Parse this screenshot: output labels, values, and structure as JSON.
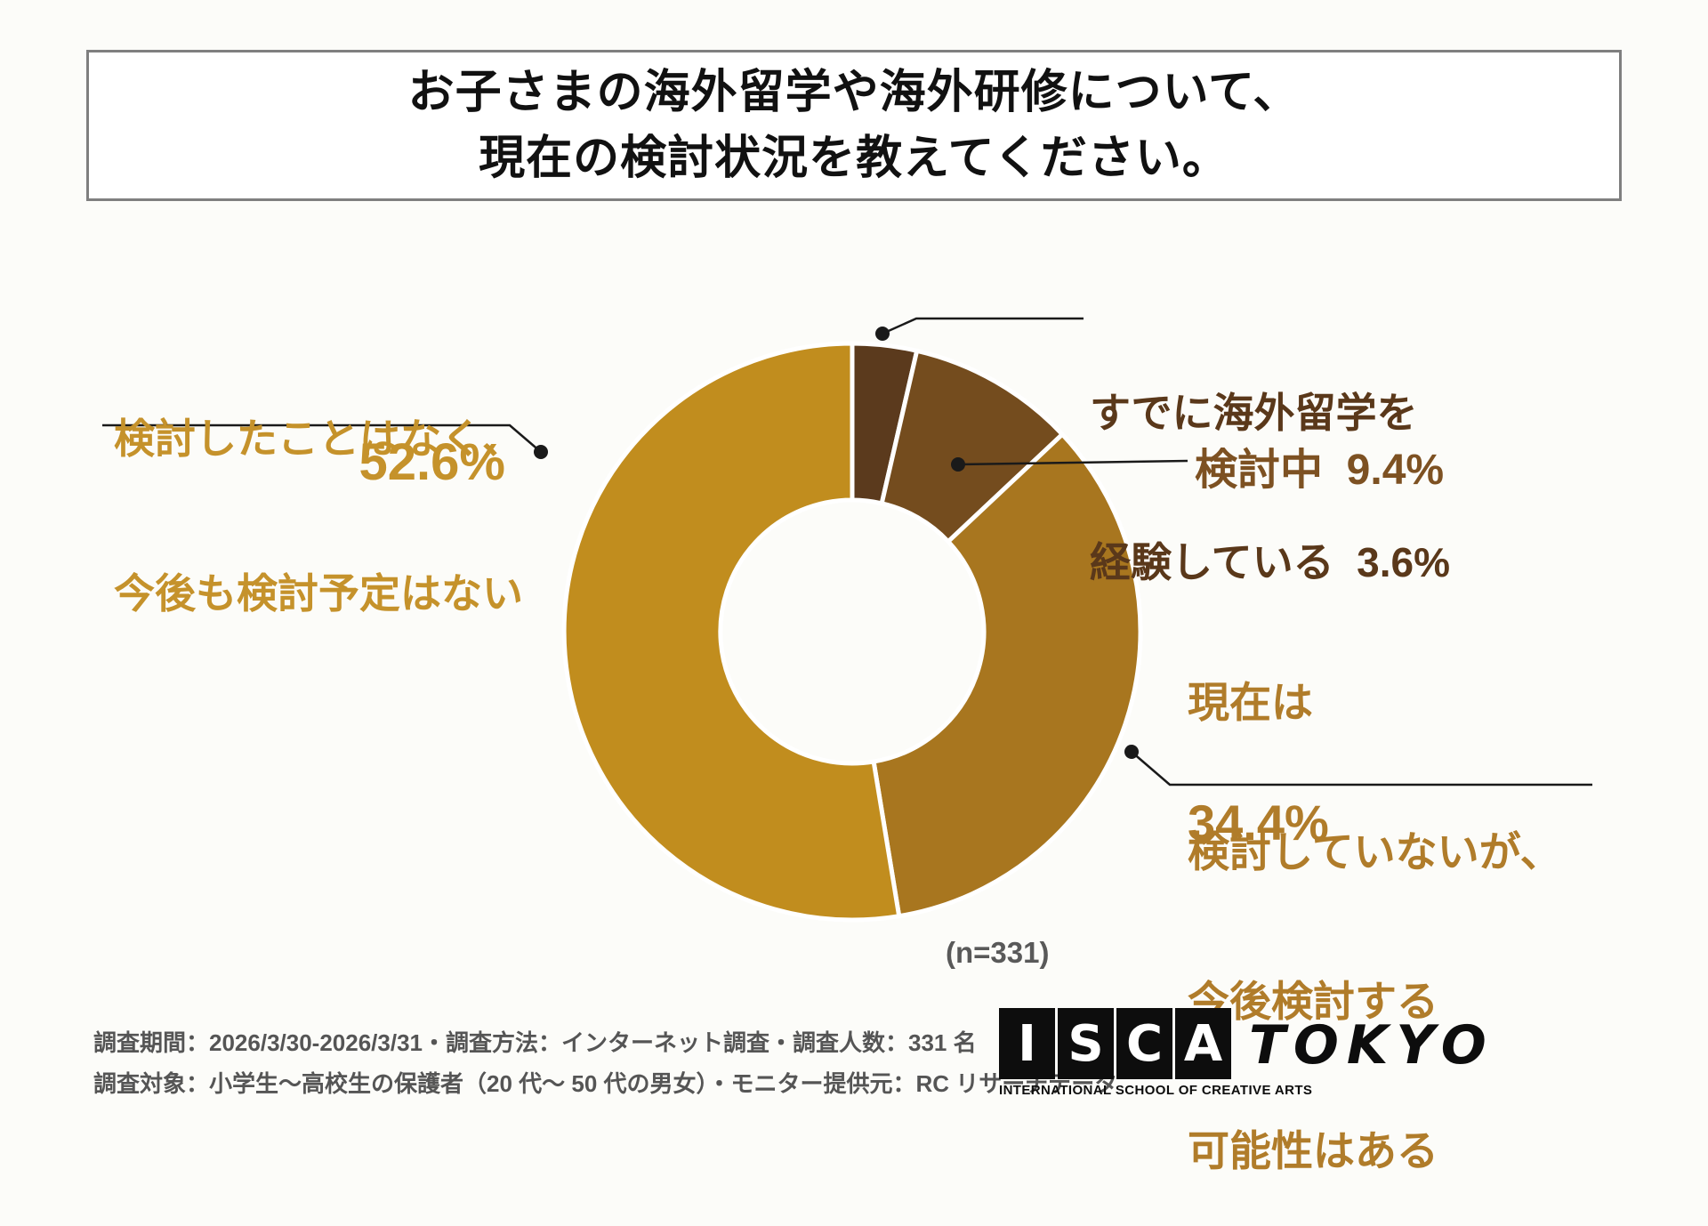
{
  "title": {
    "line1": "お子さまの海外留学や海外研修について、",
    "line2": "現在の検討状況を教えてください。"
  },
  "chart_data": {
    "type": "pie",
    "subtype": "donut",
    "title": "お子さまの海外留学や海外研修について、現在の検討状況を教えてください。",
    "n": 331,
    "n_label": "(n=331)",
    "direction": "clockwise",
    "start_angle_deg": 0,
    "segments": [
      {
        "label": "すでに海外留学を経験している",
        "value": 3.6,
        "color": "#5b3a1d"
      },
      {
        "label": "検討中",
        "value": 9.4,
        "color": "#744c1e"
      },
      {
        "label": "現在は検討していないが、今後検討する可能性はある",
        "value": 34.4,
        "color": "#a8761f"
      },
      {
        "label": "検討したことはなく、今後も検討予定はない",
        "value": 52.6,
        "color": "#c18d1e"
      }
    ]
  },
  "callouts": {
    "experienced": {
      "line1": "すでに海外留学を",
      "line2": "経験している  3.6%"
    },
    "considering": {
      "text": "検討中  9.4%"
    },
    "future": {
      "line1": "現在は",
      "line2": "検討していないが、",
      "line3": "今後検討する",
      "line4": "可能性はある",
      "pct": "34.4%"
    },
    "never": {
      "line1": "検討したことはなく、",
      "line2": "今後も検討予定はない",
      "pct": "52.6%"
    }
  },
  "footer": {
    "line1": "調査期間：2026/3/30-2026/3/31・調査方法：インターネット調査・調査人数：331 名",
    "line2": "調査対象：小学生～高校生の保護者（20 代～ 50 代の男女）・モニター提供元：RC リサーチデータ"
  },
  "logo": {
    "letters": [
      "I",
      "S",
      "C",
      "A"
    ],
    "subtext": "INTERNATIONAL SCHOOL OF CREATIVE ARTS",
    "suffix": "TOKYO"
  }
}
